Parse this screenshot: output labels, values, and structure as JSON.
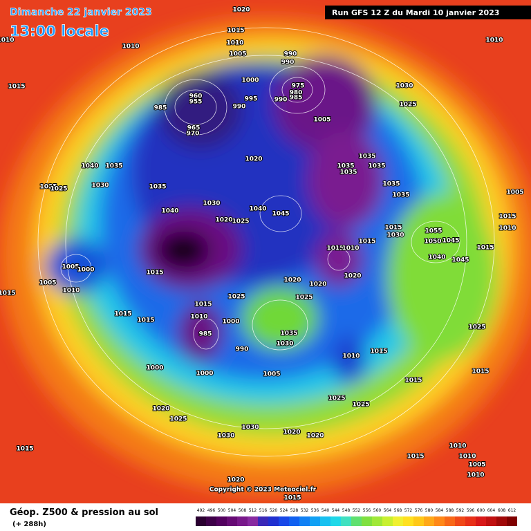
{
  "header": {
    "date": "Dimanche 22 janvier 2023",
    "time": "13:00 locale",
    "run": "Run GFS 12 Z du Mardi 10 janvier 2023"
  },
  "copyright": "Copyright © 2023 Meteociel.fr",
  "map_labels": [
    "1020",
    "1015",
    "1010",
    "1010",
    "1010",
    "1015",
    "1005",
    "1010",
    "990",
    "990",
    "1000",
    "995",
    "990",
    "990",
    "975",
    "980",
    "985",
    "960",
    "955",
    "985",
    "970",
    "965",
    "1005",
    "1030",
    "1025",
    "1020",
    "1035",
    "1035",
    "1035",
    "1035",
    "1035",
    "1035",
    "1005",
    "1040",
    "1035",
    "1035",
    "1025",
    "1025",
    "1030",
    "1040",
    "1030",
    "1020",
    "1025",
    "1045",
    "1040",
    "1015",
    "1030",
    "1055",
    "1050",
    "1045",
    "1040",
    "1045",
    "1015",
    "1010",
    "1015",
    "1015",
    "1010",
    "1015",
    "1005",
    "1000",
    "1015",
    "1005",
    "1010",
    "1015",
    "1020",
    "1020",
    "1020",
    "1025",
    "1025",
    "1015",
    "1015",
    "1015",
    "1010",
    "1000",
    "985",
    "990",
    "1035",
    "1030",
    "1010",
    "1015",
    "1025",
    "1000",
    "1000",
    "1005",
    "1015",
    "1015",
    "1025",
    "1025",
    "1020",
    "1025",
    "1030",
    "1030",
    "1020",
    "1020",
    "1015",
    "1010",
    "1015",
    "1010",
    "1005",
    "1010",
    "1020",
    "1015"
  ],
  "legend": {
    "title": "Géop. Z500 & pression au sol",
    "subtitle": "(+ 288h)",
    "scale_labels": [
      492,
      496,
      500,
      504,
      508,
      512,
      516,
      520,
      524,
      528,
      532,
      536,
      540,
      544,
      548,
      552,
      556,
      560,
      564,
      568,
      572,
      576,
      580,
      584,
      588,
      592,
      596,
      600,
      604,
      608,
      612
    ],
    "colors": [
      "#2a0030",
      "#3e0048",
      "#52005e",
      "#660a74",
      "#78188a",
      "#882aa0",
      "#3a28b8",
      "#2030d0",
      "#1848e8",
      "#1060f0",
      "#1080f4",
      "#10a0f4",
      "#18c0f0",
      "#20d8e8",
      "#40e0c0",
      "#60e070",
      "#80e040",
      "#a0e838",
      "#c8f030",
      "#f0f030",
      "#ffe020",
      "#ffc818",
      "#ffa818",
      "#ff8818",
      "#f86818",
      "#f04818",
      "#e83018",
      "#d81818",
      "#c01010",
      "#a00808",
      "#800000"
    ]
  }
}
